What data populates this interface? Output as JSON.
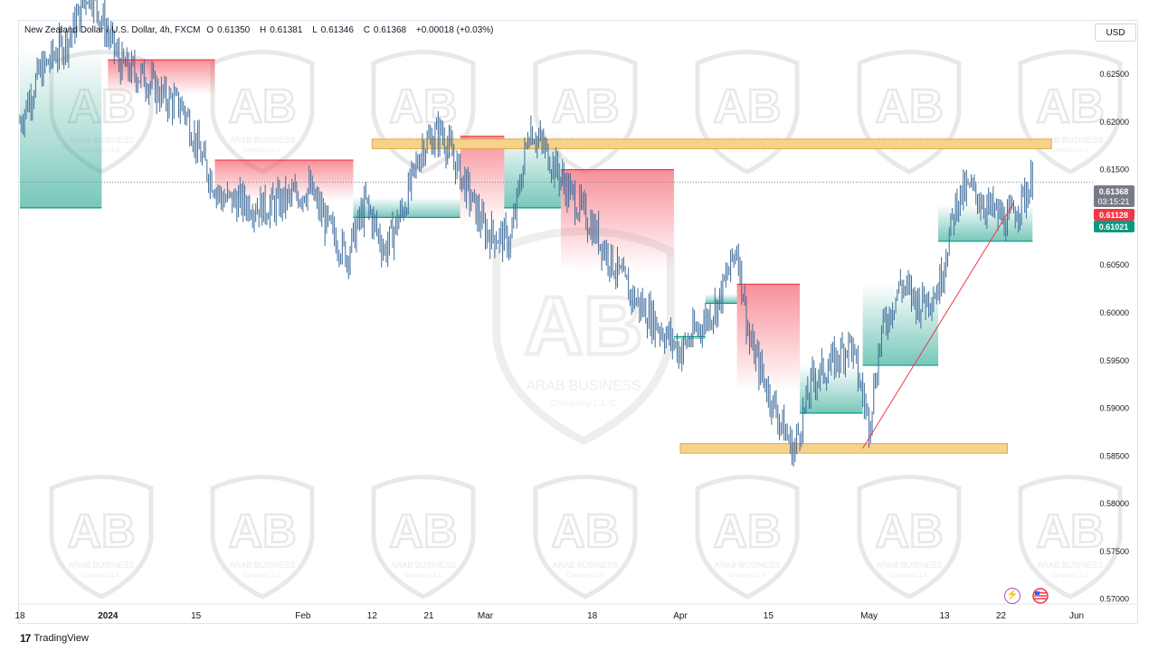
{
  "legend": {
    "symbol": "New Zealand Dollar / U.S. Dollar, 4h, FXCM",
    "o_key": "O",
    "o_val": "0.61350",
    "h_key": "H",
    "h_val": "0.61381",
    "l_key": "L",
    "l_val": "0.61346",
    "c_key": "C",
    "c_val": "0.61368",
    "change": "+0.00018 (+0.03%)"
  },
  "currency_button": "USD",
  "footer": {
    "brand": "TradingView"
  },
  "watermark": {
    "name": "ARAB BUSINESS",
    "sub": "Company L.L.C"
  },
  "price_tags": [
    {
      "value": "0.61368",
      "sub": "03:15:21",
      "color": "#787b86"
    },
    {
      "value": "0.61128",
      "color": "#f23645"
    },
    {
      "value": "0.61021",
      "color": "#089981"
    }
  ],
  "icons": [
    "lightning-icon",
    "us-flag-icon"
  ],
  "chart_data": {
    "type": "candlestick",
    "title": "New Zealand Dollar / U.S. Dollar, 4h, FXCM",
    "y_range": [
      0.5695,
      0.6305
    ],
    "y_ticks": [
      "0.62500",
      "0.62000",
      "0.61500",
      "0.61000",
      "0.60500",
      "0.60000",
      "0.59500",
      "0.59000",
      "0.58500",
      "0.58000",
      "0.57500",
      "0.57000"
    ],
    "x_range_days": [
      "2023-12-18",
      "2024-06-03"
    ],
    "x_ticks": [
      {
        "label": "18",
        "date": "2023-12-18"
      },
      {
        "label": "2024",
        "date": "2024-01-01"
      },
      {
        "label": "15",
        "date": "2024-01-15"
      },
      {
        "label": "Feb",
        "date": "2024-02-01"
      },
      {
        "label": "12",
        "date": "2024-02-12"
      },
      {
        "label": "21",
        "date": "2024-02-21"
      },
      {
        "label": "Mar",
        "date": "2024-03-01"
      },
      {
        "label": "18",
        "date": "2024-03-18"
      },
      {
        "label": "Apr",
        "date": "2024-04-01"
      },
      {
        "label": "15",
        "date": "2024-04-15"
      },
      {
        "label": "May",
        "date": "2024-05-01"
      },
      {
        "label": "13",
        "date": "2024-05-13"
      },
      {
        "label": "22",
        "date": "2024-05-22"
      },
      {
        "label": "Jun",
        "date": "2024-06-03"
      }
    ],
    "path_points": [
      [
        "2023-12-18",
        0.62
      ],
      [
        "2023-12-21",
        0.625
      ],
      [
        "2023-12-26",
        0.629
      ],
      [
        "2023-12-29",
        0.634
      ],
      [
        "2024-01-03",
        0.626
      ],
      [
        "2024-01-07",
        0.6245
      ],
      [
        "2024-01-10",
        0.6225
      ],
      [
        "2024-01-13",
        0.6215
      ],
      [
        "2024-01-16",
        0.616
      ],
      [
        "2024-01-19",
        0.612
      ],
      [
        "2024-01-23",
        0.6115
      ],
      [
        "2024-01-26",
        0.611
      ],
      [
        "2024-01-30",
        0.612
      ],
      [
        "2024-02-02",
        0.613
      ],
      [
        "2024-02-05",
        0.609
      ],
      [
        "2024-02-08",
        0.606
      ],
      [
        "2024-02-11",
        0.6115
      ],
      [
        "2024-02-14",
        0.6065
      ],
      [
        "2024-02-17",
        0.611
      ],
      [
        "2024-02-20",
        0.6175
      ],
      [
        "2024-02-23",
        0.619
      ],
      [
        "2024-02-27",
        0.613
      ],
      [
        "2024-03-01",
        0.6085
      ],
      [
        "2024-03-05",
        0.6075
      ],
      [
        "2024-03-08",
        0.6195
      ],
      [
        "2024-03-11",
        0.6165
      ],
      [
        "2024-03-14",
        0.613
      ],
      [
        "2024-03-18",
        0.609
      ],
      [
        "2024-03-21",
        0.6055
      ],
      [
        "2024-03-24",
        0.602
      ],
      [
        "2024-03-28",
        0.599
      ],
      [
        "2024-04-01",
        0.596
      ],
      [
        "2024-04-04",
        0.5985
      ],
      [
        "2024-04-07",
        0.601
      ],
      [
        "2024-04-10",
        0.607
      ],
      [
        "2024-04-12",
        0.597
      ],
      [
        "2024-04-16",
        0.59
      ],
      [
        "2024-04-19",
        0.5855
      ],
      [
        "2024-04-22",
        0.593
      ],
      [
        "2024-04-25",
        0.5945
      ],
      [
        "2024-04-28",
        0.597
      ],
      [
        "2024-05-01",
        0.5885
      ],
      [
        "2024-05-03",
        0.598
      ],
      [
        "2024-05-06",
        0.603
      ],
      [
        "2024-05-09",
        0.601
      ],
      [
        "2024-05-12",
        0.6025
      ],
      [
        "2024-05-15",
        0.612
      ],
      [
        "2024-05-17",
        0.613
      ],
      [
        "2024-05-20",
        0.611
      ],
      [
        "2024-05-23",
        0.6095
      ],
      [
        "2024-05-25",
        0.6115
      ],
      [
        "2024-05-27",
        0.6137
      ]
    ],
    "resistance_zone": {
      "from": "2024-02-12",
      "to": "2024-05-30",
      "low": 0.6172,
      "high": 0.6182,
      "color": "#f6d28b"
    },
    "support_zone": {
      "from": "2024-04-01",
      "to": "2024-05-23",
      "low": 0.5853,
      "high": 0.5863,
      "color": "#f6d28b"
    },
    "trendline": {
      "from": [
        "2024-04-30",
        0.5858
      ],
      "to": [
        "2024-05-24",
        0.6115
      ],
      "color": "#f23645"
    },
    "current_price": 0.61368,
    "trailing_stop_bands": [
      {
        "from": "2023-12-18",
        "to": "2023-12-31",
        "level": 0.611,
        "color": "#089981"
      },
      {
        "from": "2024-01-01",
        "to": "2024-01-18",
        "level": 0.6265,
        "color": "#f23645"
      },
      {
        "from": "2024-01-18",
        "to": "2024-02-09",
        "level": 0.616,
        "color": "#f23645"
      },
      {
        "from": "2024-02-09",
        "to": "2024-02-26",
        "level": 0.61,
        "color": "#089981"
      },
      {
        "from": "2024-02-26",
        "to": "2024-03-04",
        "level": 0.6185,
        "color": "#f23645"
      },
      {
        "from": "2024-03-04",
        "to": "2024-03-13",
        "level": 0.611,
        "color": "#089981"
      },
      {
        "from": "2024-03-13",
        "to": "2024-03-31",
        "level": 0.615,
        "color": "#f23645"
      },
      {
        "from": "2024-03-31",
        "to": "2024-04-05",
        "level": 0.5975,
        "color": "#089981"
      },
      {
        "from": "2024-04-05",
        "to": "2024-04-10",
        "level": 0.601,
        "color": "#089981"
      },
      {
        "from": "2024-04-10",
        "to": "2024-04-20",
        "level": 0.603,
        "color": "#f23645"
      },
      {
        "from": "2024-04-20",
        "to": "2024-04-30",
        "level": 0.5895,
        "color": "#089981"
      },
      {
        "from": "2024-04-30",
        "to": "2024-05-12",
        "level": 0.5945,
        "color": "#089981"
      },
      {
        "from": "2024-05-12",
        "to": "2024-05-27",
        "level": 0.6075,
        "color": "#089981"
      }
    ]
  }
}
